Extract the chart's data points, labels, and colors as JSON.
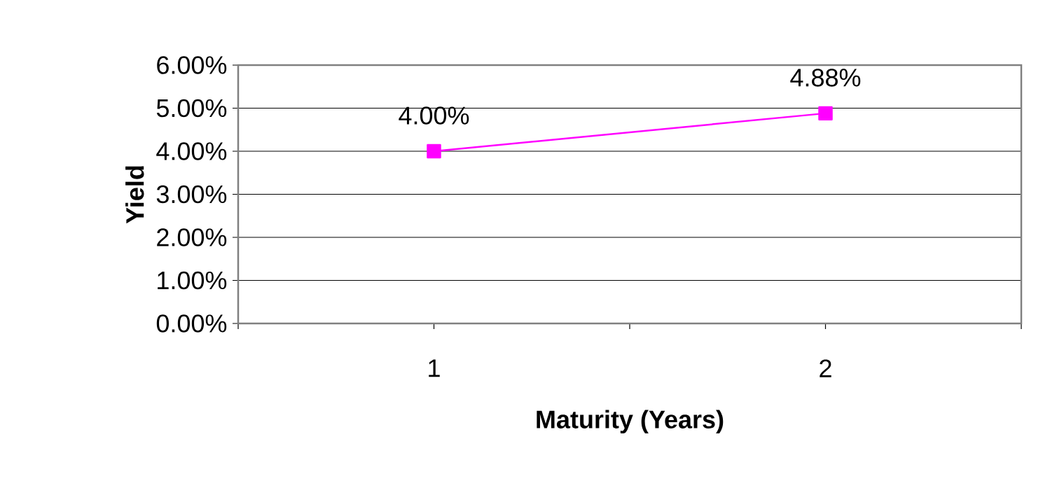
{
  "chart_data": {
    "type": "line",
    "xlabel": "Maturity (Years)",
    "ylabel": "Yield",
    "categories": [
      "1",
      "2"
    ],
    "series": [
      {
        "color": "#ff00ff",
        "values": [
          4.0,
          4.88
        ],
        "value_labels": [
          "4.00%",
          "4.88%"
        ]
      }
    ],
    "ylim": [
      0,
      6
    ],
    "yticks": [
      {
        "value": 0,
        "label": "0.00%"
      },
      {
        "value": 1,
        "label": "1.00%"
      },
      {
        "value": 2,
        "label": "2.00%"
      },
      {
        "value": 3,
        "label": "3.00%"
      },
      {
        "value": 4,
        "label": "4.00%"
      },
      {
        "value": 5,
        "label": "5.00%"
      },
      {
        "value": 6,
        "label": "6.00%"
      }
    ],
    "grid": "y",
    "marker": "square",
    "line_style": "solid"
  }
}
